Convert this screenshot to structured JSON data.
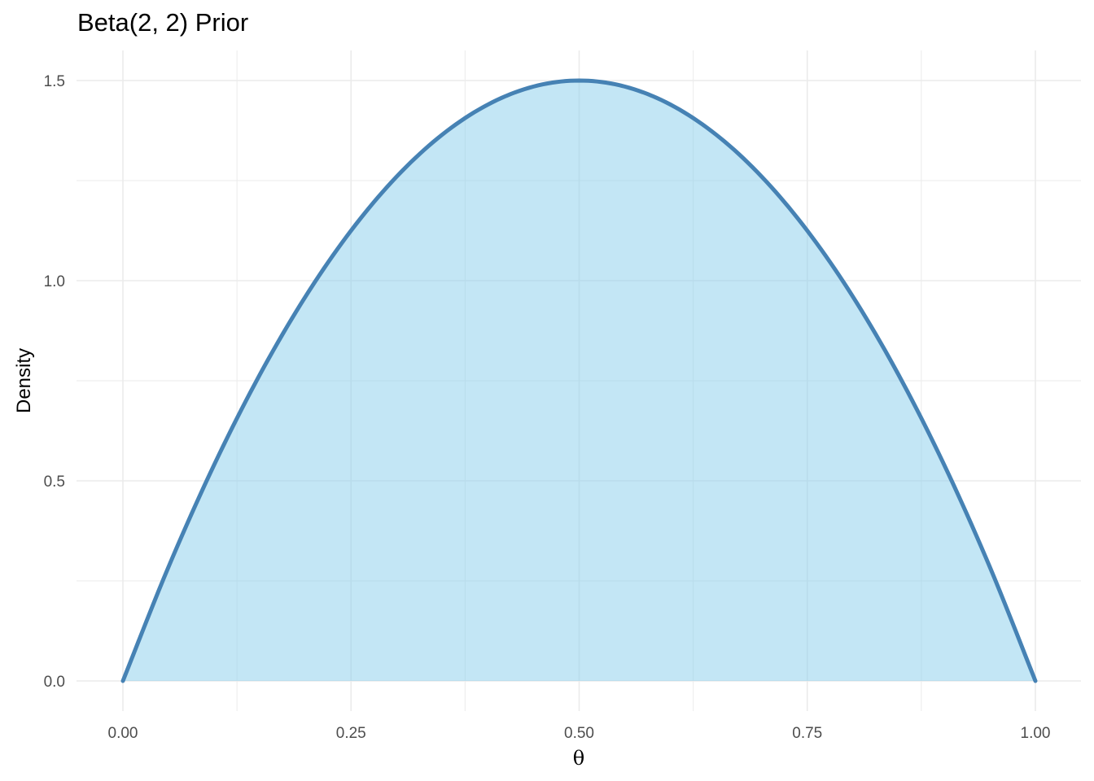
{
  "chart_data": {
    "type": "area",
    "title": "Beta(2, 2) Prior",
    "xlabel": "θ",
    "ylabel": "Density",
    "xlim": [
      0,
      1
    ],
    "ylim": [
      0,
      1.5
    ],
    "x_ticks": [
      "0.00",
      "0.25",
      "0.50",
      "0.75",
      "1.00"
    ],
    "y_ticks": [
      "0.0",
      "0.5",
      "1.0",
      "1.5"
    ],
    "grid": true,
    "legend": "none",
    "series": [
      {
        "x": [
          0,
          0.05,
          0.1,
          0.15,
          0.2,
          0.25,
          0.3,
          0.35,
          0.4,
          0.45,
          0.5,
          0.55,
          0.6,
          0.65,
          0.7,
          0.75,
          0.8,
          0.85,
          0.9,
          0.95,
          1
        ],
        "y": [
          0,
          0.285,
          0.54,
          0.765,
          0.96,
          1.125,
          1.26,
          1.365,
          1.44,
          1.485,
          1.5,
          1.485,
          1.44,
          1.365,
          1.26,
          1.125,
          0.96,
          0.765,
          0.54,
          0.285,
          0
        ]
      }
    ],
    "colors": {
      "line": "#4682B4",
      "fill": "#87CEEB",
      "grid": "#EBEBEB"
    }
  }
}
